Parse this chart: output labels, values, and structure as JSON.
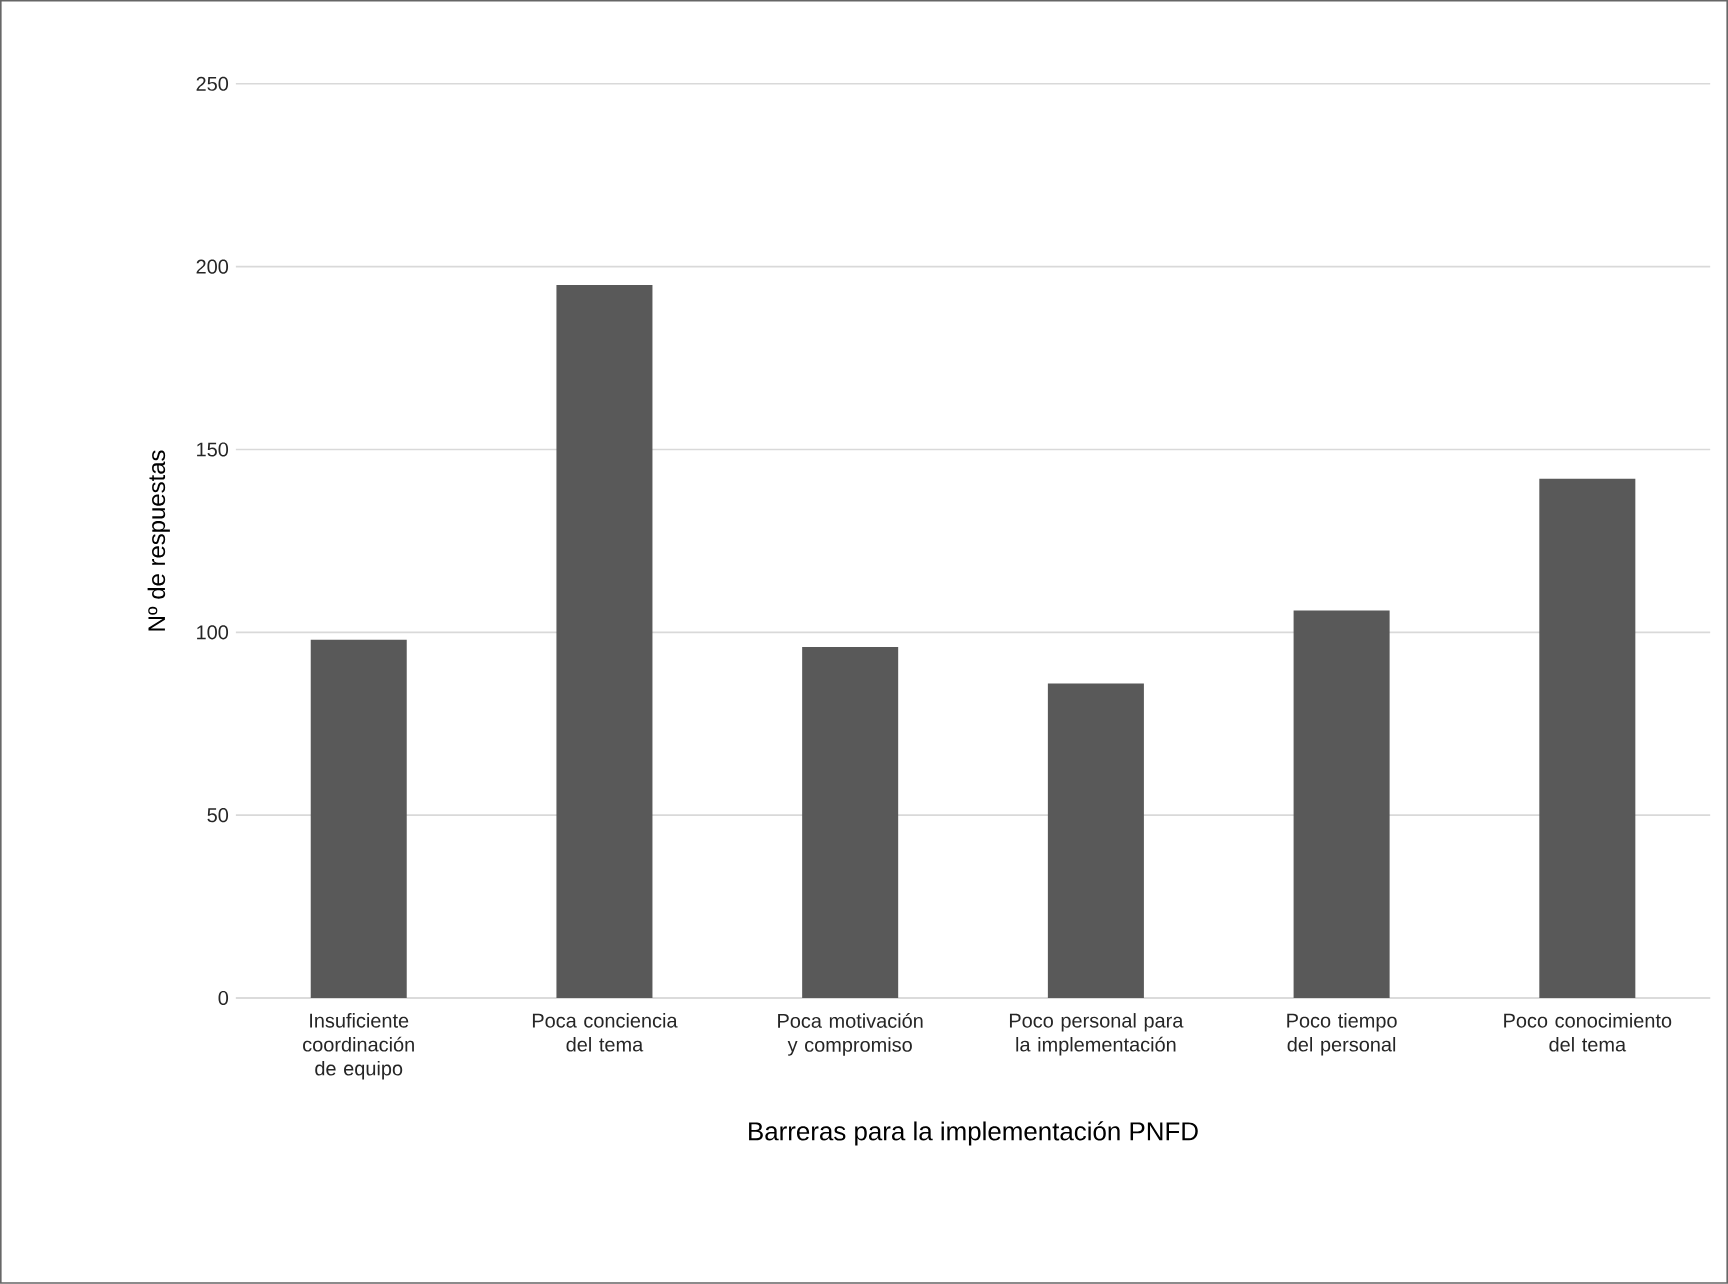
{
  "chart_data": {
    "type": "bar",
    "xlabel": "Barreras para la implementación PNFD",
    "ylabel": "Nº de respuestas",
    "categories": [
      "Insuficiente coordinación de equipo",
      "Poca conciencia del tema",
      "Poca motivación y compromiso",
      "Poco personal para la implementación",
      "Poco tiempo del personal",
      "Poco conocimiento del tema"
    ],
    "values": [
      98,
      195,
      96,
      86,
      106,
      142
    ],
    "color": "#595959",
    "ylim": [
      0,
      250
    ],
    "yticks": [
      0,
      50,
      100,
      150,
      200,
      250
    ],
    "grid": "y"
  }
}
